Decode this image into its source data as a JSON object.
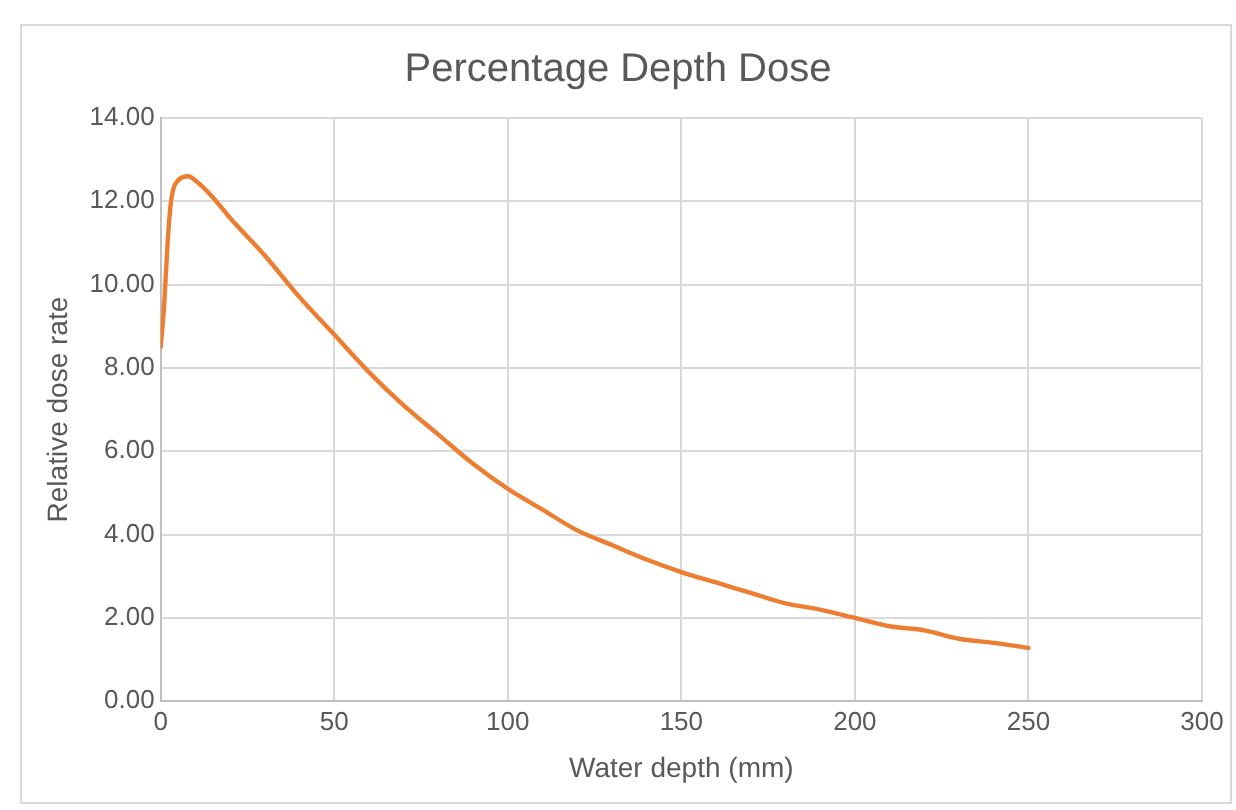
{
  "chart_data": {
    "type": "line",
    "title": "Percentage Depth Dose",
    "xlabel": "Water depth (mm)",
    "ylabel": "Relative dose rate",
    "x": [
      0,
      1,
      2,
      3,
      5,
      8,
      10,
      15,
      20,
      30,
      40,
      50,
      60,
      70,
      80,
      90,
      100,
      110,
      120,
      130,
      140,
      150,
      160,
      170,
      180,
      190,
      200,
      210,
      220,
      230,
      240,
      250
    ],
    "series": [
      {
        "color": "#ed7d31",
        "values": [
          8.5,
          9.5,
          11,
          12,
          12.5,
          12.6,
          12.5,
          12.1,
          11.6,
          10.7,
          9.7,
          8.8,
          7.9,
          7.1,
          6.4,
          5.7,
          5.1,
          4.6,
          4.1,
          3.75,
          3.4,
          3.1,
          2.85,
          2.6,
          2.35,
          2.2,
          2.0,
          1.8,
          1.7,
          1.5,
          1.4,
          1.28
        ]
      }
    ],
    "xlim": [
      0,
      300
    ],
    "xticks": [
      0,
      50,
      100,
      150,
      200,
      250,
      300
    ],
    "ylim": [
      0,
      14
    ],
    "yticks": [
      {
        "value": 0,
        "label": "0.00"
      },
      {
        "value": 2,
        "label": "2.00"
      },
      {
        "value": 4,
        "label": "4.00"
      },
      {
        "value": 6,
        "label": "6.00"
      },
      {
        "value": 8,
        "label": "8.00"
      },
      {
        "value": 10,
        "label": "10.00"
      },
      {
        "value": 12,
        "label": "12.00"
      },
      {
        "value": 14,
        "label": "14.00"
      }
    ],
    "grid": true,
    "legend": false,
    "marker": "none",
    "line_style": "solid"
  }
}
